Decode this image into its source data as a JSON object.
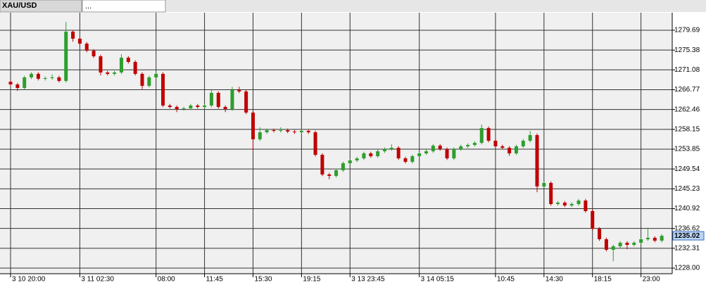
{
  "ui": {
    "tabs": [
      "XAU/USD",
      "..."
    ]
  },
  "chart_data": {
    "type": "candlestick",
    "categories": [
      "3 10 20:00",
      null,
      null,
      null,
      null,
      null,
      null,
      null,
      null,
      null,
      "3 11 02:30",
      null,
      null,
      null,
      null,
      null,
      null,
      null,
      null,
      null,
      null,
      "08:00",
      null,
      null,
      null,
      null,
      null,
      null,
      "11:45",
      null,
      null,
      null,
      null,
      null,
      null,
      "15:30",
      null,
      null,
      null,
      null,
      null,
      null,
      "19:15",
      null,
      null,
      null,
      null,
      null,
      null,
      "3 13 23:45",
      null,
      null,
      null,
      null,
      null,
      null,
      null,
      null,
      null,
      "3 14 05:15",
      null,
      null,
      null,
      null,
      null,
      null,
      null,
      null,
      null,
      null,
      "10:45",
      null,
      null,
      null,
      null,
      null,
      null,
      "14:30",
      null,
      null,
      null,
      null,
      null,
      null,
      "18:15",
      null,
      null,
      null,
      null,
      null,
      null,
      "23:00",
      null,
      null,
      null
    ],
    "open": [
      1268.5,
      1267.91,
      1267.15,
      1269.44,
      1270.21,
      1269.14,
      1269.29,
      1269.44,
      1268.68,
      1279.38,
      1277.85,
      1276.78,
      1275.25,
      1274.03,
      1270.51,
      1270.21,
      1270.51,
      1273.73,
      1272.81,
      1270.21,
      1267.61,
      1269.44,
      1270.21,
      1263.33,
      1263.02,
      1262.56,
      1262.71,
      1263.33,
      1263.02,
      1263.33,
      1266.08,
      1263.02,
      1262.56,
      1266.69,
      1266.39,
      1261.8,
      1255.99,
      1257.52,
      1257.97,
      1257.82,
      1257.97,
      1257.67,
      1257.52,
      1257.82,
      1257.52,
      1252.62,
      1248.34,
      1248.03,
      1249.26,
      1250.79,
      1251.4,
      1251.85,
      1252.93,
      1252.32,
      1253.39,
      1253.85,
      1254.15,
      1251.85,
      1251.09,
      1252.32,
      1252.93,
      1253.39,
      1254.61,
      1253.85,
      1251.85,
      1253.85,
      1254.46,
      1254.76,
      1255.22,
      1258.43,
      1255.68,
      1254.46,
      1254.15,
      1252.93,
      1254.46,
      1255.68,
      1256.9,
      1245.74,
      1246.5,
      1241.92,
      1242.22,
      1241.61,
      1241.92,
      1242.68,
      1240.39,
      1236.56,
      1234.27,
      1231.98,
      1232.74,
      1233.51,
      1233.05,
      1233.51,
      1234.27,
      1234.58,
      1233.96
    ],
    "high": [
      1268.85,
      1268.26,
      1269.79,
      1270.56,
      1270.56,
      1269.64,
      1270.1,
      1269.79,
      1281.5,
      1279.73,
      1278.2,
      1277.13,
      1275.6,
      1274.38,
      1270.86,
      1270.86,
      1274.5,
      1274.08,
      1273.16,
      1270.56,
      1269.79,
      1271.0,
      1270.56,
      1263.68,
      1263.37,
      1263.06,
      1263.68,
      1263.68,
      1263.68,
      1266.9,
      1266.43,
      1263.37,
      1267.4,
      1267.4,
      1266.74,
      1262.15,
      1258.6,
      1258.32,
      1258.32,
      1258.6,
      1258.32,
      1258.02,
      1258.17,
      1258.17,
      1257.87,
      1252.97,
      1248.69,
      1249.61,
      1251.14,
      1251.75,
      1252.2,
      1253.28,
      1253.28,
      1253.74,
      1254.2,
      1254.9,
      1254.5,
      1252.2,
      1252.67,
      1253.28,
      1253.74,
      1254.96,
      1254.96,
      1254.2,
      1254.2,
      1254.81,
      1255.11,
      1255.57,
      1259.2,
      1258.78,
      1256.03,
      1254.81,
      1254.5,
      1254.81,
      1256.03,
      1257.8,
      1257.25,
      1246.85,
      1246.85,
      1242.57,
      1242.57,
      1242.27,
      1243.03,
      1243.03,
      1240.74,
      1236.91,
      1234.62,
      1233.09,
      1233.86,
      1233.86,
      1233.86,
      1234.62,
      1236.8,
      1234.93,
      1235.37
    ],
    "low": [
      1267.56,
      1266.5,
      1266.8,
      1269.09,
      1268.79,
      1268.79,
      1268.94,
      1268.33,
      1268.33,
      1277.2,
      1276.43,
      1274.9,
      1273.68,
      1269.9,
      1269.86,
      1269.86,
      1270.16,
      1272.46,
      1269.86,
      1266.9,
      1267.26,
      1269.09,
      1262.98,
      1262.67,
      1261.9,
      1262.21,
      1262.36,
      1262.67,
      1262.67,
      1262.98,
      1262.67,
      1261.9,
      1262.21,
      1266.04,
      1261.45,
      1253.5,
      1255.64,
      1257.17,
      1257.47,
      1257.47,
      1257.32,
      1257.17,
      1257.17,
      1257.17,
      1252.27,
      1247.99,
      1247.3,
      1247.68,
      1248.91,
      1250.44,
      1251.05,
      1251.5,
      1251.97,
      1251.97,
      1253.04,
      1253.5,
      1251.5,
      1250.74,
      1250.74,
      1251.97,
      1252.58,
      1253.04,
      1253.5,
      1251.5,
      1251.5,
      1253.5,
      1254.11,
      1254.41,
      1254.87,
      1255.33,
      1254.11,
      1253.8,
      1252.4,
      1252.58,
      1254.11,
      1255.33,
      1244.5,
      1245.39,
      1241.57,
      1241.57,
      1241.26,
      1241.26,
      1241.57,
      1240.04,
      1236.21,
      1233.92,
      1231.63,
      1229.5,
      1232.39,
      1232.1,
      1232.7,
      1233.16,
      1233.92,
      1233.61,
      1233.61
    ],
    "close": [
      1267.91,
      1267.15,
      1269.44,
      1270.21,
      1269.14,
      1269.29,
      1269.44,
      1268.68,
      1279.38,
      1277.85,
      1276.78,
      1275.25,
      1274.03,
      1270.51,
      1270.21,
      1270.51,
      1273.73,
      1272.81,
      1270.21,
      1267.61,
      1269.44,
      1270.21,
      1263.33,
      1263.02,
      1262.56,
      1262.71,
      1263.33,
      1263.02,
      1263.33,
      1266.08,
      1263.02,
      1262.56,
      1266.69,
      1266.39,
      1261.8,
      1255.99,
      1257.52,
      1257.97,
      1257.82,
      1257.97,
      1257.67,
      1257.52,
      1257.82,
      1257.52,
      1252.62,
      1248.34,
      1248.03,
      1249.26,
      1250.79,
      1251.4,
      1251.85,
      1252.93,
      1252.32,
      1253.39,
      1253.85,
      1254.15,
      1251.85,
      1251.09,
      1252.32,
      1252.93,
      1253.39,
      1254.61,
      1253.85,
      1251.85,
      1253.85,
      1254.46,
      1254.76,
      1255.22,
      1258.43,
      1255.68,
      1254.46,
      1254.15,
      1252.93,
      1254.46,
      1255.68,
      1256.9,
      1245.74,
      1246.5,
      1241.92,
      1242.22,
      1241.61,
      1241.92,
      1242.68,
      1240.39,
      1236.56,
      1234.27,
      1231.98,
      1232.74,
      1233.51,
      1233.05,
      1233.51,
      1234.27,
      1234.58,
      1233.96,
      1235.02
    ],
    "up_color": "#2e9e2e",
    "down_color": "#c00000",
    "ylim": [
      1226.78,
      1283.51
    ],
    "yticks": [
      1279.69,
      1275.38,
      1271.08,
      1266.77,
      1262.46,
      1258.15,
      1253.85,
      1249.54,
      1245.23,
      1240.92,
      1236.62,
      1232.31,
      {
        "value": 1228,
        "label": "1228.00"
      }
    ],
    "grid": true,
    "last_price": 1235.02
  }
}
